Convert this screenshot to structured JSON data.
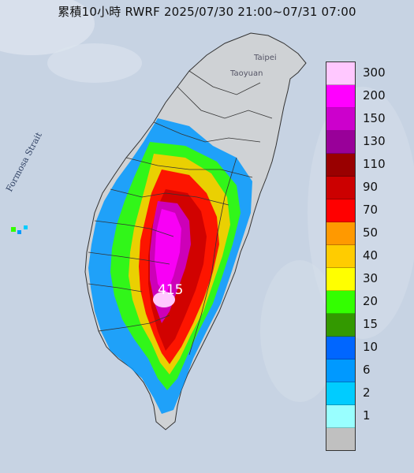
{
  "title": "累積10小時 RWRF 2025/07/30 21:00~07/31 07:00",
  "map_labels": {
    "taipei": "Taipei",
    "taoyuan": "Taoyuan",
    "strait": "Formosa Strait",
    "max_value": "415"
  },
  "legend": [
    {
      "label": "300",
      "color": "#ffc8ff"
    },
    {
      "label": "200",
      "color": "#ff00ff"
    },
    {
      "label": "150",
      "color": "#cc00cc"
    },
    {
      "label": "130",
      "color": "#990099"
    },
    {
      "label": "110",
      "color": "#990000"
    },
    {
      "label": "90",
      "color": "#cc0000"
    },
    {
      "label": "70",
      "color": "#ff0000"
    },
    {
      "label": "50",
      "color": "#ff9900"
    },
    {
      "label": "40",
      "color": "#ffcc00"
    },
    {
      "label": "30",
      "color": "#ffff00"
    },
    {
      "label": "20",
      "color": "#33ff00"
    },
    {
      "label": "15",
      "color": "#339900"
    },
    {
      "label": "10",
      "color": "#0066ff"
    },
    {
      "label": "6",
      "color": "#0099ff"
    },
    {
      "label": "2",
      "color": "#00ccff"
    },
    {
      "label": "1",
      "color": "#99ffff"
    },
    {
      "label": "",
      "color": "#c0c0c0"
    }
  ]
}
